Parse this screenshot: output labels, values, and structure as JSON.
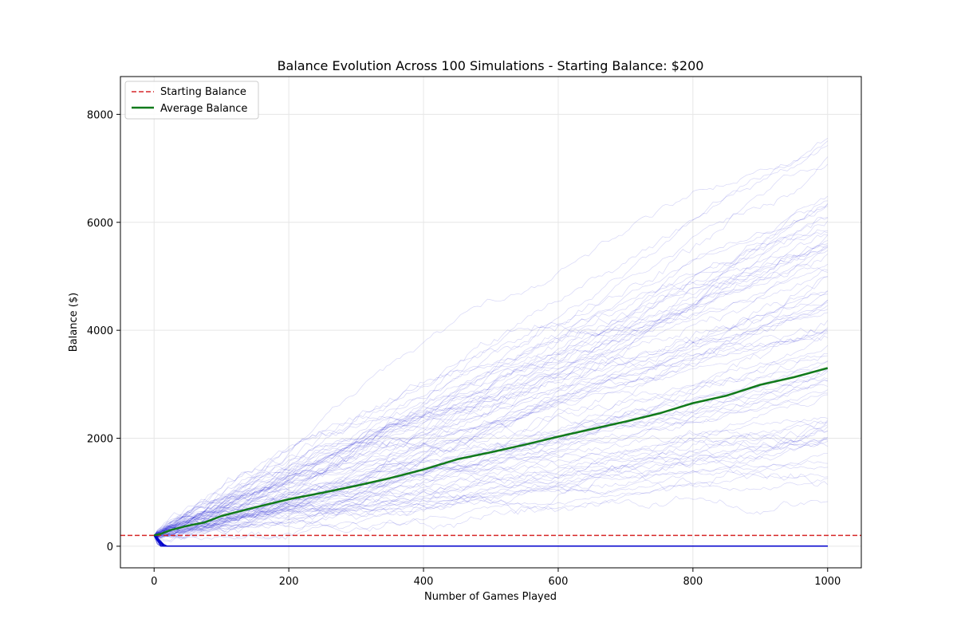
{
  "chart_data": {
    "type": "line",
    "title": "Balance Evolution Across 100 Simulations - Starting Balance: $200",
    "xlabel": "Number of Games Played",
    "ylabel": "Balance ($)",
    "xlim": [
      -50,
      1050
    ],
    "ylim": [
      -400,
      8700
    ],
    "xticks": [
      0,
      200,
      400,
      600,
      800,
      1000
    ],
    "yticks": [
      0,
      2000,
      4000,
      6000,
      8000
    ],
    "grid": true,
    "legend_position": "top-left",
    "starting_balance": {
      "name": "Starting Balance",
      "value": 200,
      "color": "#d62728",
      "style": "dashed"
    },
    "average_balance": {
      "name": "Average Balance",
      "color": "#117a1b",
      "x": [
        0,
        10,
        25,
        50,
        75,
        100,
        150,
        200,
        250,
        300,
        350,
        400,
        450,
        500,
        550,
        600,
        650,
        700,
        750,
        800,
        850,
        900,
        950,
        1000
      ],
      "y": [
        200,
        230,
        300,
        380,
        440,
        560,
        720,
        870,
        990,
        1120,
        1260,
        1420,
        1610,
        1740,
        1880,
        2030,
        2170,
        2310,
        2460,
        2650,
        2790,
        2990,
        3130,
        3300
      ]
    },
    "simulations": {
      "count": 100,
      "games": 1000,
      "color": "#0000cc",
      "final_balance_range": [
        0,
        8200
      ],
      "busted_final_balance": 0
    }
  }
}
